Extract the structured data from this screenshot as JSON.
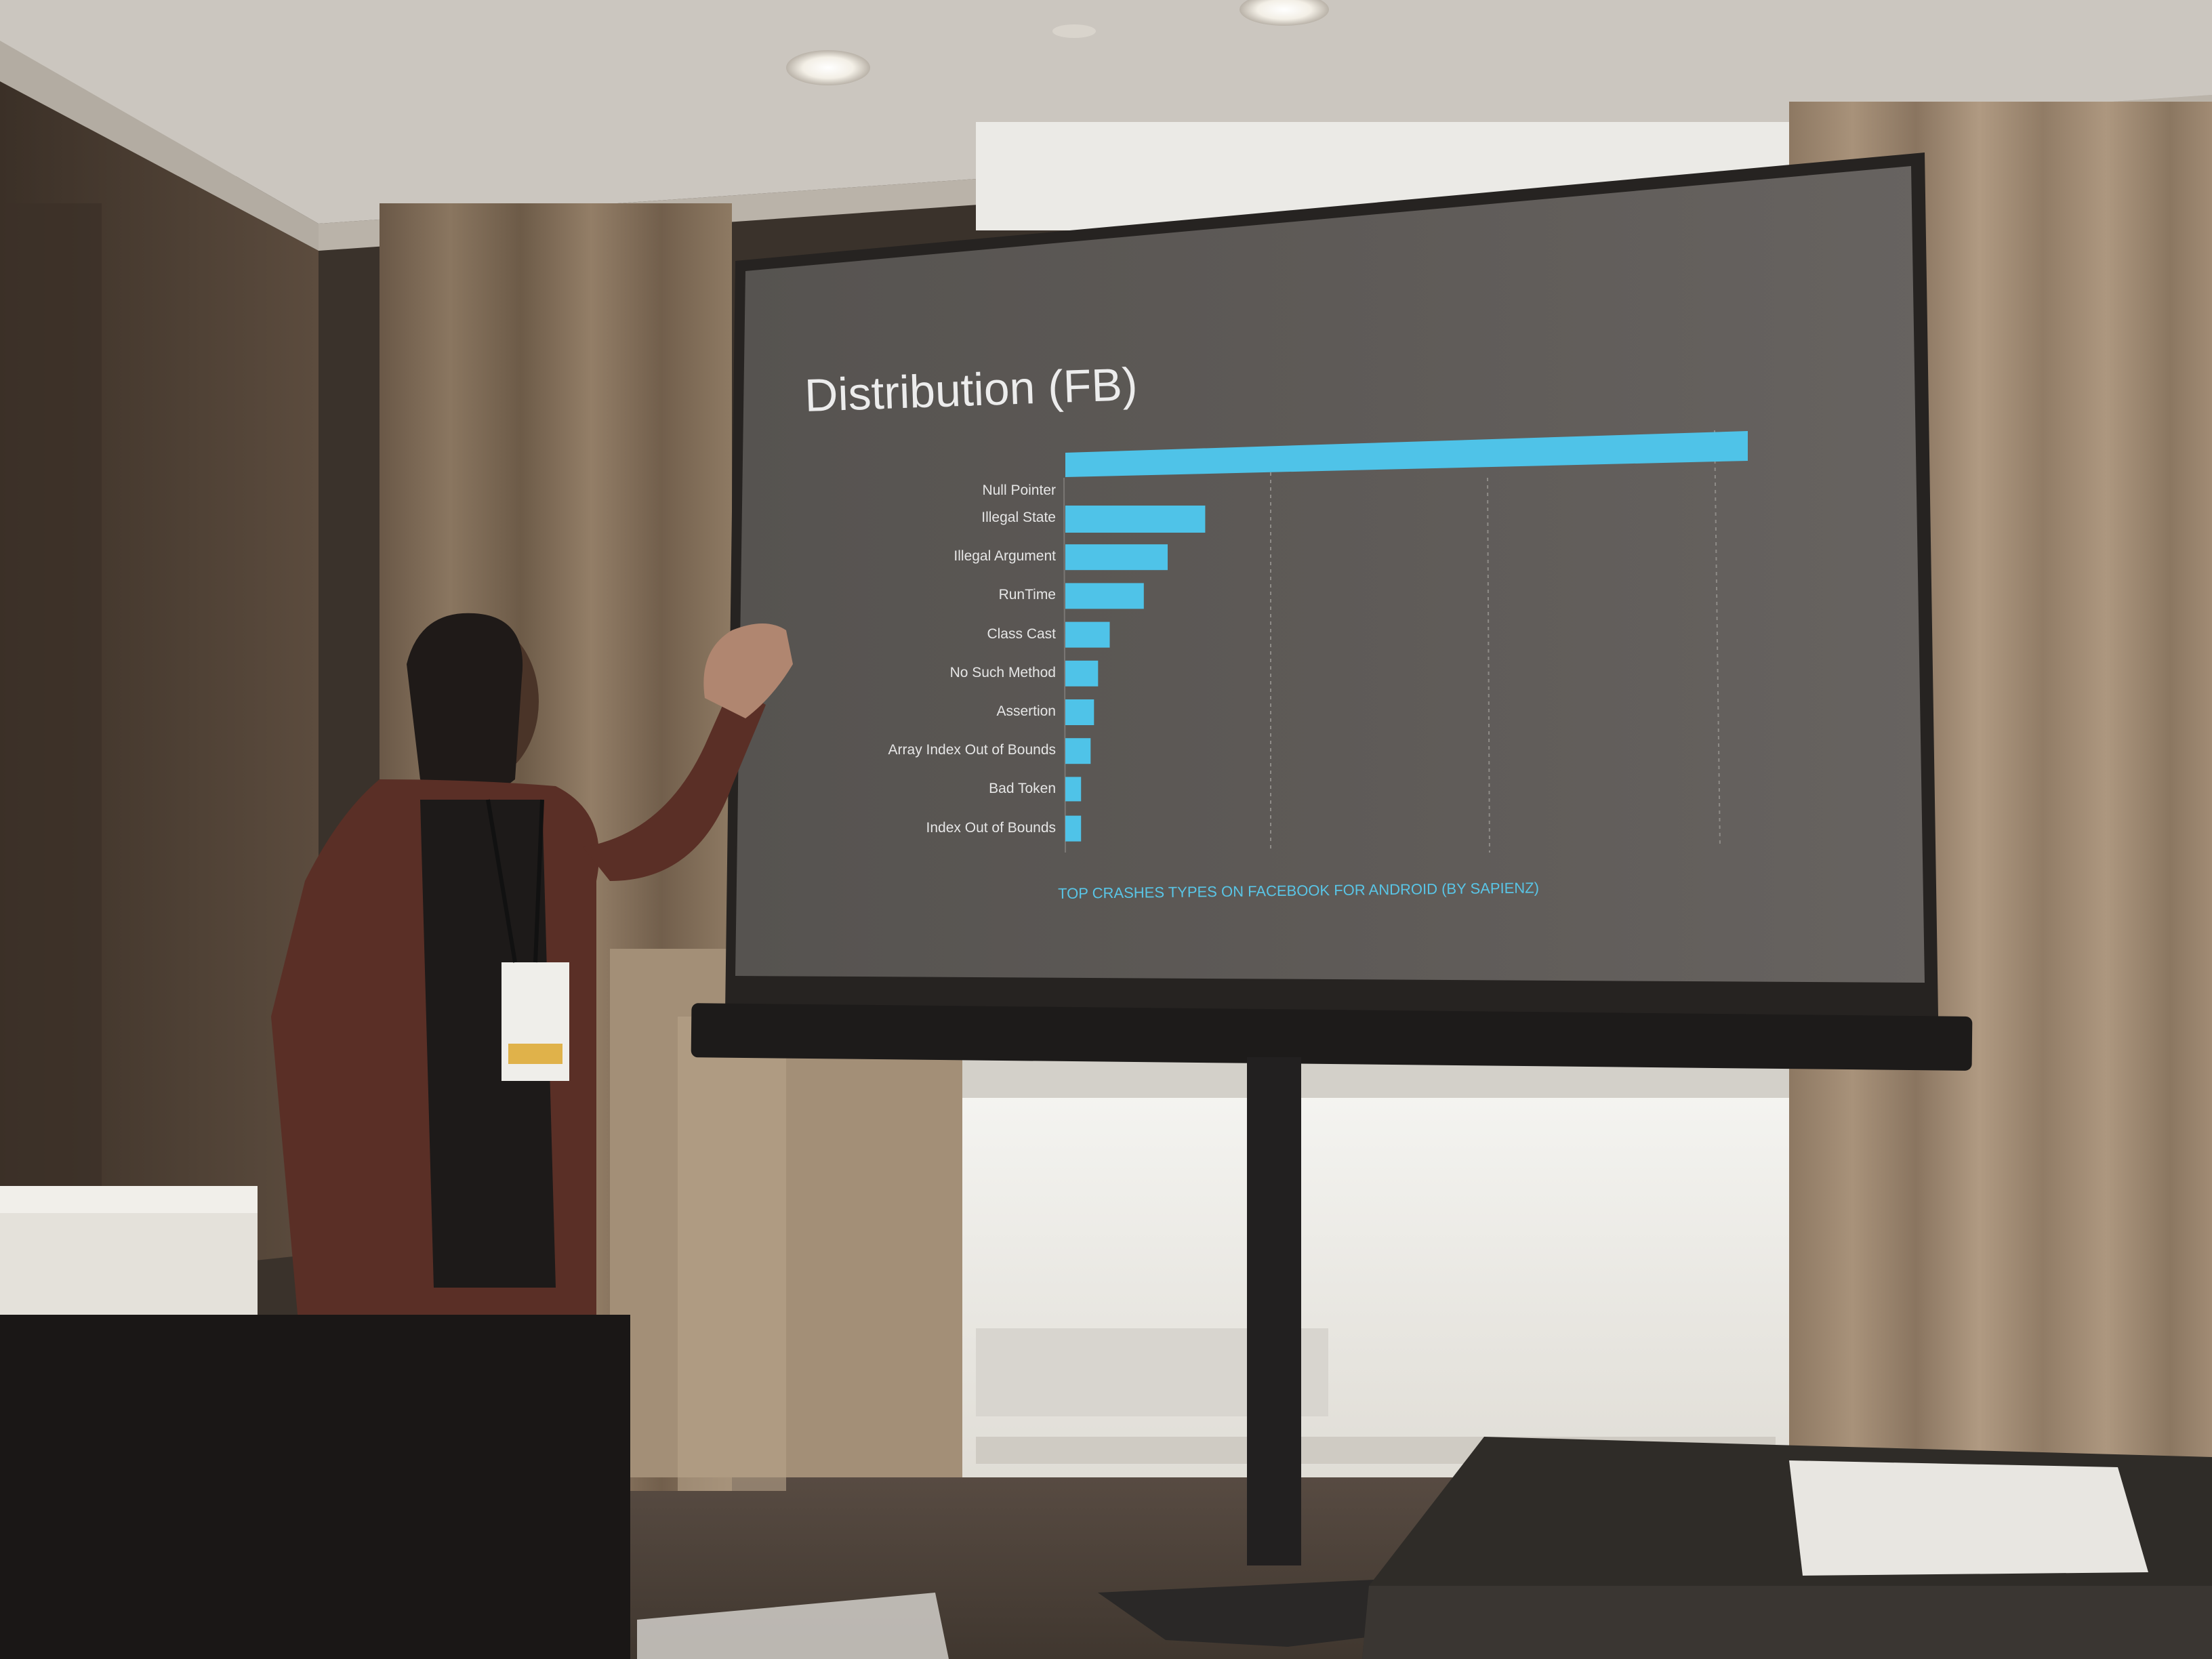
{
  "slide": {
    "title": "Distribution (FB)",
    "caption": "TOP CRASHES TYPES ON FACEBOOK FOR ANDROID (BY SAPIENZ)"
  },
  "chart_data": {
    "type": "bar",
    "orientation": "horizontal",
    "title": "Distribution (FB)",
    "categories": [
      "Null Pointer",
      "Illegal State",
      "Illegal Argument",
      "RunTime",
      "Class Cast",
      "No Such Method",
      "Assertion",
      "Array Index Out of Bounds",
      "Bad Token",
      "Index Out of Bounds"
    ],
    "values": [
      100,
      20.5,
      15,
      11.5,
      6.5,
      4.8,
      4.2,
      3.7,
      2.3,
      2.3
    ],
    "xlim": [
      0,
      100
    ],
    "grid": true,
    "bar_color": "#4fc3e8"
  }
}
